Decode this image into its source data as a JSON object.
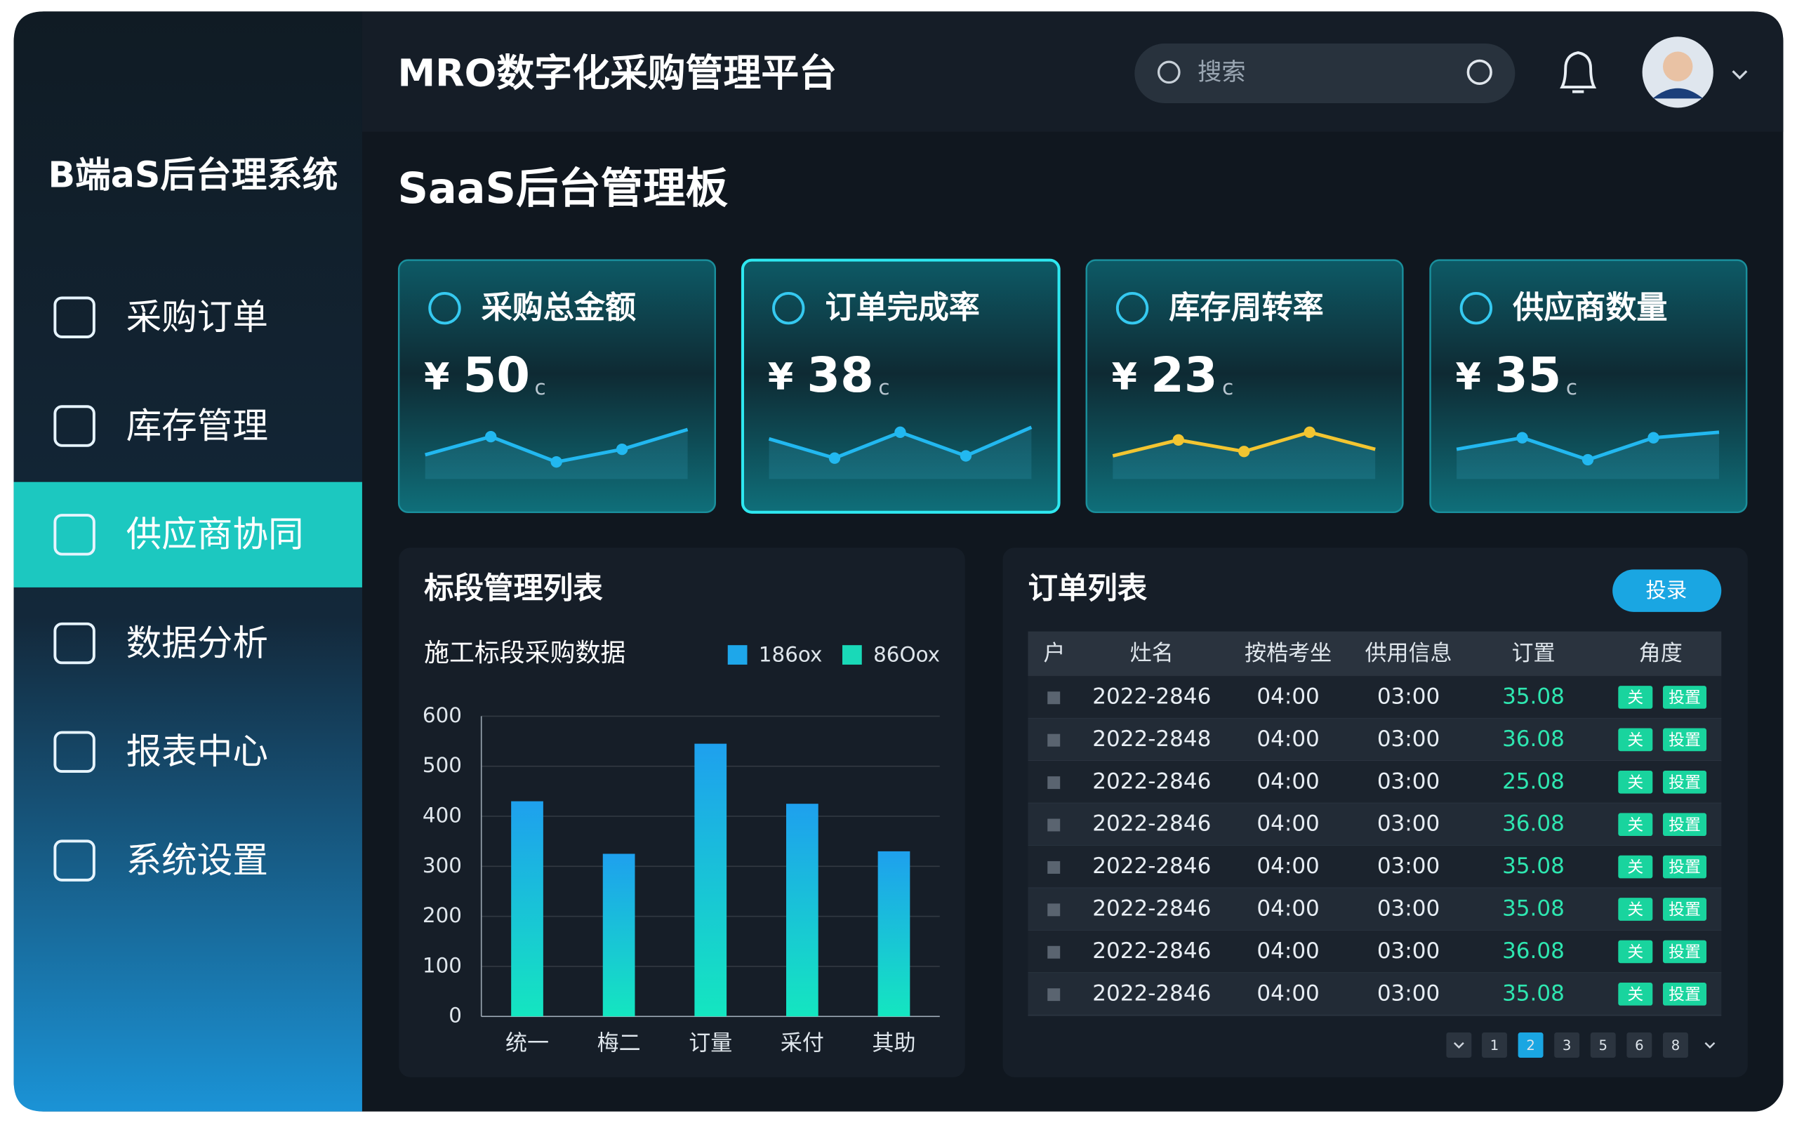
{
  "app": {
    "title": "MRO数字化采购管理平台",
    "search_placeholder": "搜索"
  },
  "sidebar": {
    "title": "B端aS后台理系统",
    "items": [
      "采购订单",
      "库存管理",
      "供应商协同",
      "数据分析",
      "报表中心",
      "系统设置"
    ],
    "active": 2
  },
  "page_title": "SaaS后台管理板",
  "kpis": [
    {
      "title": "采购总金额",
      "currency": "¥",
      "value": 50,
      "unit": "c",
      "color": "#22b8f0",
      "trend": [
        44,
        77,
        31,
        54,
        90
      ]
    },
    {
      "title": "订单完成率",
      "currency": "¥",
      "value": 38,
      "unit": "c",
      "color": "#22b8f0",
      "trend": [
        73,
        38,
        85,
        42,
        94
      ]
    },
    {
      "title": "库存周转率",
      "currency": "¥",
      "value": 23,
      "unit": "c",
      "color": "#f2c531",
      "trend": [
        42,
        71,
        50,
        85,
        54
      ]
    },
    {
      "title": "供应商数量",
      "currency": "¥",
      "value": 35,
      "unit": "c",
      "color": "#22b8f0",
      "trend": [
        54,
        75,
        35,
        75,
        85
      ]
    }
  ],
  "chart_panel": {
    "title": "标段管理列表"
  },
  "chart_data": {
    "type": "bar",
    "title": "施工标段采购数据",
    "categories": [
      "统一",
      "梅二",
      "订量",
      "采付",
      "其助"
    ],
    "values": [
      430,
      325,
      545,
      425,
      330
    ],
    "legend": [
      {
        "name": "186ox",
        "color": "#1ea7ea"
      },
      {
        "name": "86Oox",
        "color": "#19d9b8"
      }
    ],
    "ylim": [
      0,
      600
    ],
    "yticks": [
      0,
      100,
      200,
      300,
      400,
      500,
      600
    ],
    "grid": true
  },
  "orders": {
    "title": "订单列表",
    "button": "投录",
    "headers": [
      "户",
      "灶名",
      "按梏考坐",
      "供用信息",
      "订置",
      "角度"
    ],
    "rows": [
      [
        "2022-2846",
        "04:00",
        "03:00",
        "35.08",
        "关",
        "投置"
      ],
      [
        "2022-2848",
        "04:00",
        "03:00",
        "36.08",
        "关",
        "投置"
      ],
      [
        "2022-2846",
        "04:00",
        "03:00",
        "25.08",
        "关",
        "投置"
      ],
      [
        "2022-2846",
        "04:00",
        "03:00",
        "36.08",
        "关",
        "投置"
      ],
      [
        "2022-2846",
        "04:00",
        "03:00",
        "35.08",
        "关",
        "投置"
      ],
      [
        "2022-2846",
        "04:00",
        "03:00",
        "35.08",
        "关",
        "投置"
      ],
      [
        "2022-2846",
        "04:00",
        "03:00",
        "36.08",
        "关",
        "投置"
      ],
      [
        "2022-2846",
        "04:00",
        "03:00",
        "35.08",
        "关",
        "投置"
      ]
    ],
    "pages": [
      "1",
      "2",
      "3",
      "5",
      "6",
      "8"
    ],
    "current_page": 1
  }
}
